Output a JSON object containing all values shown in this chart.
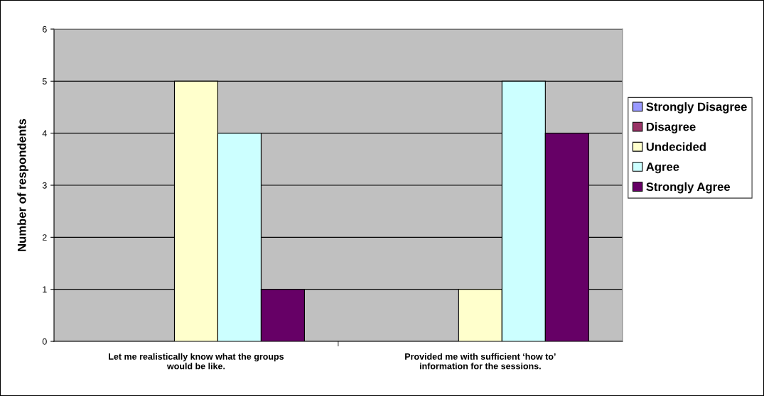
{
  "chart_data": {
    "type": "bar",
    "ylabel": "Number of respondents",
    "categories": [
      "Let me realistically know what the groups\nwould be like.",
      "Provided me with sufficient ‘how to’\ninformation for the sessions."
    ],
    "series": [
      {
        "name": "Strongly Disagree",
        "color": "#9999ff",
        "values": [
          0,
          0
        ]
      },
      {
        "name": "Disagree",
        "color": "#993366",
        "values": [
          0,
          0
        ]
      },
      {
        "name": "Undecided",
        "color": "#ffffcc",
        "values": [
          5,
          1
        ]
      },
      {
        "name": "Agree",
        "color": "#ccffff",
        "values": [
          4,
          5
        ]
      },
      {
        "name": "Strongly Agree",
        "color": "#660066",
        "values": [
          1,
          4
        ]
      }
    ],
    "ylim": [
      0,
      6
    ],
    "yticks": [
      0,
      1,
      2,
      3,
      4,
      5,
      6
    ],
    "grid": "y",
    "legend": "right"
  }
}
